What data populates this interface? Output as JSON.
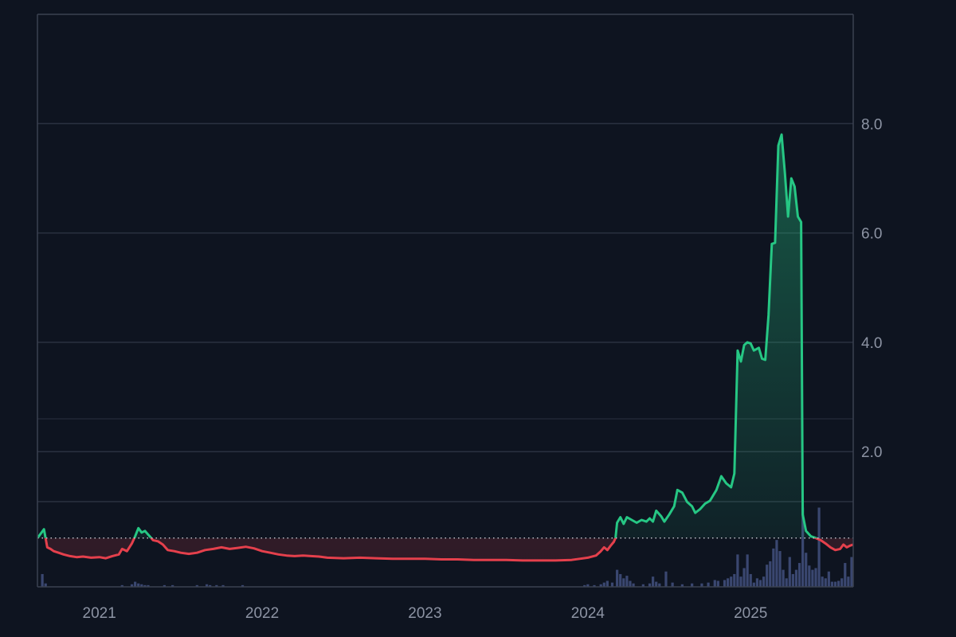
{
  "chart_data": {
    "type": "area",
    "baseline": 0.42,
    "ylim": [
      -0.4,
      10.0
    ],
    "yticks": [
      {
        "value": 8.0,
        "label": "8.0"
      },
      {
        "value": 6.0,
        "label": "6.0"
      },
      {
        "value": 4.0,
        "label": "4.0"
      },
      {
        "value": 2.0,
        "label": "2.0"
      }
    ],
    "xlim": [
      2020.62,
      2025.63
    ],
    "xticks": [
      {
        "value": 2021.0,
        "label": "2021"
      },
      {
        "value": 2022.0,
        "label": "2022"
      },
      {
        "value": 2023.0,
        "label": "2023"
      },
      {
        "value": 2024.0,
        "label": "2024"
      },
      {
        "value": 2025.0,
        "label": "2025"
      }
    ],
    "grid": true,
    "colors": {
      "above": "#26c784",
      "below": "#e5404c",
      "volume": "#3a4770",
      "grid": "#2a3140",
      "axis": "#3a4150",
      "baseline": "#c8ccd4"
    },
    "series": [
      {
        "values": [
          [
            2020.62,
            0.42
          ],
          [
            2020.66,
            0.58
          ],
          [
            2020.68,
            0.25
          ],
          [
            2020.7,
            0.22
          ],
          [
            2020.72,
            0.18
          ],
          [
            2020.75,
            0.15
          ],
          [
            2020.78,
            0.12
          ],
          [
            2020.82,
            0.09
          ],
          [
            2020.86,
            0.07
          ],
          [
            2020.9,
            0.08
          ],
          [
            2020.95,
            0.06
          ],
          [
            2021.0,
            0.07
          ],
          [
            2021.04,
            0.05
          ],
          [
            2021.08,
            0.09
          ],
          [
            2021.12,
            0.12
          ],
          [
            2021.14,
            0.22
          ],
          [
            2021.17,
            0.18
          ],
          [
            2021.2,
            0.32
          ],
          [
            2021.22,
            0.45
          ],
          [
            2021.24,
            0.6
          ],
          [
            2021.26,
            0.52
          ],
          [
            2021.28,
            0.55
          ],
          [
            2021.31,
            0.45
          ],
          [
            2021.33,
            0.38
          ],
          [
            2021.36,
            0.36
          ],
          [
            2021.39,
            0.3
          ],
          [
            2021.42,
            0.2
          ],
          [
            2021.46,
            0.18
          ],
          [
            2021.5,
            0.15
          ],
          [
            2021.55,
            0.13
          ],
          [
            2021.6,
            0.15
          ],
          [
            2021.65,
            0.2
          ],
          [
            2021.7,
            0.22
          ],
          [
            2021.75,
            0.25
          ],
          [
            2021.8,
            0.22
          ],
          [
            2021.85,
            0.24
          ],
          [
            2021.9,
            0.26
          ],
          [
            2021.95,
            0.23
          ],
          [
            2022.0,
            0.18
          ],
          [
            2022.05,
            0.15
          ],
          [
            2022.1,
            0.12
          ],
          [
            2022.15,
            0.1
          ],
          [
            2022.2,
            0.09
          ],
          [
            2022.25,
            0.1
          ],
          [
            2022.3,
            0.09
          ],
          [
            2022.35,
            0.08
          ],
          [
            2022.4,
            0.06
          ],
          [
            2022.5,
            0.05
          ],
          [
            2022.6,
            0.06
          ],
          [
            2022.7,
            0.05
          ],
          [
            2022.8,
            0.04
          ],
          [
            2022.9,
            0.04
          ],
          [
            2023.0,
            0.04
          ],
          [
            2023.1,
            0.03
          ],
          [
            2023.2,
            0.03
          ],
          [
            2023.3,
            0.02
          ],
          [
            2023.4,
            0.02
          ],
          [
            2023.5,
            0.02
          ],
          [
            2023.6,
            0.01
          ],
          [
            2023.7,
            0.01
          ],
          [
            2023.8,
            0.01
          ],
          [
            2023.9,
            0.02
          ],
          [
            2023.95,
            0.04
          ],
          [
            2024.0,
            0.06
          ],
          [
            2024.05,
            0.1
          ],
          [
            2024.08,
            0.18
          ],
          [
            2024.1,
            0.25
          ],
          [
            2024.12,
            0.2
          ],
          [
            2024.14,
            0.28
          ],
          [
            2024.16,
            0.35
          ],
          [
            2024.17,
            0.42
          ],
          [
            2024.18,
            0.7
          ],
          [
            2024.2,
            0.8
          ],
          [
            2024.22,
            0.68
          ],
          [
            2024.24,
            0.8
          ],
          [
            2024.27,
            0.75
          ],
          [
            2024.3,
            0.7
          ],
          [
            2024.33,
            0.75
          ],
          [
            2024.36,
            0.72
          ],
          [
            2024.38,
            0.78
          ],
          [
            2024.4,
            0.72
          ],
          [
            2024.42,
            0.92
          ],
          [
            2024.45,
            0.82
          ],
          [
            2024.47,
            0.72
          ],
          [
            2024.5,
            0.85
          ],
          [
            2024.53,
            1.0
          ],
          [
            2024.55,
            1.3
          ],
          [
            2024.58,
            1.25
          ],
          [
            2024.61,
            1.08
          ],
          [
            2024.64,
            1.0
          ],
          [
            2024.66,
            0.88
          ],
          [
            2024.69,
            0.95
          ],
          [
            2024.72,
            1.05
          ],
          [
            2024.75,
            1.1
          ],
          [
            2024.79,
            1.3
          ],
          [
            2024.82,
            1.55
          ],
          [
            2024.85,
            1.42
          ],
          [
            2024.88,
            1.35
          ],
          [
            2024.9,
            1.6
          ],
          [
            2024.92,
            3.85
          ],
          [
            2024.94,
            3.65
          ],
          [
            2024.96,
            3.95
          ],
          [
            2024.98,
            4.0
          ],
          [
            2025.0,
            3.98
          ],
          [
            2025.02,
            3.85
          ],
          [
            2025.05,
            3.9
          ],
          [
            2025.07,
            3.7
          ],
          [
            2025.09,
            3.68
          ],
          [
            2025.11,
            4.5
          ],
          [
            2025.13,
            5.8
          ],
          [
            2025.15,
            5.82
          ],
          [
            2025.17,
            7.6
          ],
          [
            2025.19,
            7.8
          ],
          [
            2025.21,
            7.1
          ],
          [
            2025.23,
            6.3
          ],
          [
            2025.25,
            7.0
          ],
          [
            2025.27,
            6.85
          ],
          [
            2025.29,
            6.3
          ],
          [
            2025.31,
            6.2
          ],
          [
            2025.32,
            0.85
          ],
          [
            2025.34,
            0.55
          ],
          [
            2025.37,
            0.45
          ],
          [
            2025.4,
            0.42
          ],
          [
            2025.43,
            0.38
          ],
          [
            2025.46,
            0.32
          ],
          [
            2025.49,
            0.25
          ],
          [
            2025.52,
            0.2
          ],
          [
            2025.55,
            0.22
          ],
          [
            2025.57,
            0.3
          ],
          [
            2025.59,
            0.25
          ],
          [
            2025.61,
            0.28
          ],
          [
            2025.63,
            0.3
          ]
        ]
      },
      {
        "type": "bar",
        "values": [
          [
            2020.65,
            0.15
          ],
          [
            2020.67,
            0.04
          ],
          [
            2021.14,
            0.02
          ],
          [
            2021.2,
            0.03
          ],
          [
            2021.22,
            0.06
          ],
          [
            2021.24,
            0.04
          ],
          [
            2021.26,
            0.03
          ],
          [
            2021.28,
            0.02
          ],
          [
            2021.3,
            0.02
          ],
          [
            2021.4,
            0.02
          ],
          [
            2021.45,
            0.02
          ],
          [
            2021.6,
            0.02
          ],
          [
            2021.66,
            0.03
          ],
          [
            2021.68,
            0.02
          ],
          [
            2021.72,
            0.02
          ],
          [
            2021.76,
            0.02
          ],
          [
            2021.88,
            0.02
          ],
          [
            2023.98,
            0.02
          ],
          [
            2024.0,
            0.03
          ],
          [
            2024.04,
            0.02
          ],
          [
            2024.08,
            0.03
          ],
          [
            2024.1,
            0.05
          ],
          [
            2024.12,
            0.07
          ],
          [
            2024.15,
            0.05
          ],
          [
            2024.18,
            0.2
          ],
          [
            2024.2,
            0.15
          ],
          [
            2024.22,
            0.1
          ],
          [
            2024.24,
            0.13
          ],
          [
            2024.26,
            0.07
          ],
          [
            2024.28,
            0.04
          ],
          [
            2024.34,
            0.03
          ],
          [
            2024.38,
            0.04
          ],
          [
            2024.4,
            0.12
          ],
          [
            2024.42,
            0.06
          ],
          [
            2024.44,
            0.04
          ],
          [
            2024.48,
            0.18
          ],
          [
            2024.52,
            0.05
          ],
          [
            2024.58,
            0.03
          ],
          [
            2024.64,
            0.04
          ],
          [
            2024.7,
            0.04
          ],
          [
            2024.74,
            0.05
          ],
          [
            2024.78,
            0.08
          ],
          [
            2024.8,
            0.07
          ],
          [
            2024.84,
            0.08
          ],
          [
            2024.86,
            0.1
          ],
          [
            2024.88,
            0.12
          ],
          [
            2024.9,
            0.15
          ],
          [
            2024.92,
            0.38
          ],
          [
            2024.94,
            0.12
          ],
          [
            2024.96,
            0.22
          ],
          [
            2024.98,
            0.38
          ],
          [
            2025.0,
            0.15
          ],
          [
            2025.02,
            0.05
          ],
          [
            2025.04,
            0.1
          ],
          [
            2025.06,
            0.08
          ],
          [
            2025.08,
            0.12
          ],
          [
            2025.1,
            0.26
          ],
          [
            2025.12,
            0.3
          ],
          [
            2025.14,
            0.45
          ],
          [
            2025.16,
            0.55
          ],
          [
            2025.18,
            0.42
          ],
          [
            2025.2,
            0.2
          ],
          [
            2025.22,
            0.1
          ],
          [
            2025.24,
            0.35
          ],
          [
            2025.26,
            0.15
          ],
          [
            2025.28,
            0.2
          ],
          [
            2025.3,
            0.28
          ],
          [
            2025.32,
            0.93
          ],
          [
            2025.34,
            0.4
          ],
          [
            2025.36,
            0.25
          ],
          [
            2025.38,
            0.2
          ],
          [
            2025.4,
            0.22
          ],
          [
            2025.42,
            0.93
          ],
          [
            2025.44,
            0.12
          ],
          [
            2025.46,
            0.1
          ],
          [
            2025.48,
            0.18
          ],
          [
            2025.5,
            0.06
          ],
          [
            2025.52,
            0.06
          ],
          [
            2025.54,
            0.07
          ],
          [
            2025.56,
            0.1
          ],
          [
            2025.58,
            0.28
          ],
          [
            2025.6,
            0.12
          ],
          [
            2025.62,
            0.35
          ]
        ]
      }
    ]
  }
}
